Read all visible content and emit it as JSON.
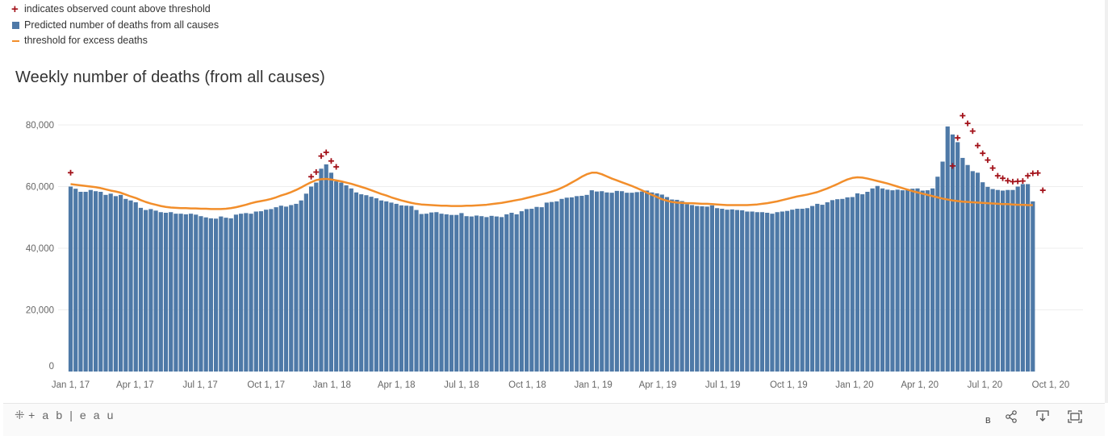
{
  "legend": {
    "items": [
      {
        "symbol": "plus",
        "label": "indicates observed count above threshold",
        "color": "#a3121a"
      },
      {
        "symbol": "bar",
        "label": "Predicted number of deaths from all causes",
        "color": "#4e79a7"
      },
      {
        "symbol": "line",
        "label": "threshold for excess deaths",
        "color": "#f28e2b"
      }
    ]
  },
  "chart_data": {
    "type": "bar",
    "title": "Weekly number of deaths (from all causes)",
    "xlabel": "",
    "ylabel": "",
    "ylim": [
      0,
      85000
    ],
    "y_ticks": [
      0,
      20000,
      40000,
      60000,
      80000
    ],
    "y_tick_labels": [
      "0",
      "20,000",
      "40,000",
      "60,000",
      "80,000"
    ],
    "x_tick_labels": [
      "Jan 1, 17",
      "Apr 1, 17",
      "Jul 1, 17",
      "Oct 1, 17",
      "Jan 1, 18",
      "Apr 1, 18",
      "Jul 1, 18",
      "Oct 1, 18",
      "Jan 1, 19",
      "Apr 1, 19",
      "Jul 1, 19",
      "Oct 1, 19",
      "Jan 1, 20",
      "Apr 1, 20",
      "Jul 1, 20",
      "Oct 1, 20"
    ],
    "x_tick_weeks": [
      0,
      12.86,
      25.86,
      39,
      52.14,
      65,
      78,
      91.14,
      104.29,
      117.14,
      130.14,
      143.29,
      156.43,
      169.43,
      182.43,
      195.57
    ],
    "grid": true,
    "legend_position": "top-left",
    "series": [
      {
        "name": "Predicted number of deaths from all causes",
        "type": "bar",
        "color": "#4e79a7",
        "values": [
          60000,
          59300,
          58300,
          58300,
          58900,
          58500,
          58300,
          57300,
          57700,
          56900,
          57300,
          56000,
          55500,
          54900,
          53100,
          52400,
          52700,
          52200,
          51700,
          51500,
          51700,
          51200,
          51200,
          51000,
          51200,
          50900,
          50400,
          50000,
          49700,
          49600,
          50300,
          49900,
          49700,
          50900,
          51200,
          51400,
          51200,
          51900,
          52000,
          52500,
          52700,
          53300,
          53800,
          53500,
          54000,
          54400,
          55500,
          57700,
          60000,
          61300,
          65800,
          67200,
          64500,
          61700,
          61300,
          60400,
          59400,
          58100,
          57500,
          57200,
          56700,
          56200,
          55500,
          55200,
          54800,
          54400,
          53900,
          53800,
          53700,
          52400,
          51100,
          51200,
          51600,
          51700,
          51200,
          51000,
          50800,
          50800,
          51400,
          50400,
          50300,
          50600,
          50400,
          50100,
          50500,
          50300,
          50100,
          51000,
          51500,
          51000,
          52000,
          52700,
          52800,
          53400,
          53300,
          54800,
          55000,
          55200,
          56000,
          56400,
          56500,
          56900,
          57000,
          57300,
          58800,
          58400,
          58500,
          58100,
          58000,
          58600,
          58500,
          58000,
          58000,
          58200,
          58400,
          58700,
          58100,
          57800,
          57400,
          56600,
          55800,
          55700,
          55300,
          54300,
          54000,
          53700,
          53600,
          53500,
          53900,
          53000,
          52800,
          52500,
          52600,
          52400,
          52300,
          51900,
          51900,
          51700,
          51700,
          51500,
          51200,
          51700,
          51900,
          52100,
          52500,
          52800,
          52800,
          53000,
          53700,
          54400,
          54100,
          54900,
          55600,
          55900,
          56000,
          56500,
          56600,
          57800,
          57500,
          58300,
          59400,
          60200,
          59400,
          59000,
          58800,
          59000,
          58800,
          59200,
          59300,
          59400,
          58700,
          58800,
          59400,
          63200,
          68100,
          79500,
          76900,
          74400,
          69300,
          67000,
          65000,
          64500,
          61400,
          59900,
          59200,
          58900,
          58700,
          58900,
          58900,
          60000,
          60800,
          60800,
          55200
        ]
      },
      {
        "name": "threshold for excess deaths",
        "type": "line",
        "color": "#f28e2b",
        "values": [
          60800,
          60600,
          60400,
          60200,
          60000,
          59800,
          59500,
          59100,
          58700,
          58400,
          58000,
          57400,
          56800,
          56300,
          55600,
          55000,
          54500,
          54100,
          53700,
          53400,
          53200,
          53100,
          53000,
          53000,
          52900,
          52900,
          52800,
          52800,
          52700,
          52700,
          52700,
          52800,
          53000,
          53300,
          53700,
          54100,
          54600,
          55000,
          55300,
          55600,
          56000,
          56500,
          57100,
          57600,
          58200,
          58900,
          59700,
          60600,
          61400,
          62100,
          62400,
          62500,
          62300,
          62000,
          61700,
          61300,
          60900,
          60400,
          59900,
          59400,
          58800,
          58200,
          57600,
          57100,
          56500,
          56000,
          55500,
          55100,
          54700,
          54400,
          54200,
          54100,
          54000,
          53900,
          53800,
          53800,
          53700,
          53700,
          53700,
          53800,
          53800,
          53900,
          54000,
          54100,
          54300,
          54500,
          54700,
          55000,
          55300,
          55600,
          55900,
          56300,
          56700,
          57100,
          57500,
          57900,
          58400,
          58900,
          59600,
          60400,
          61300,
          62200,
          63200,
          64000,
          64500,
          64500,
          64000,
          63300,
          62600,
          62000,
          61400,
          60800,
          60200,
          59500,
          58800,
          58000,
          57300,
          56600,
          55900,
          55400,
          55000,
          54800,
          54700,
          54600,
          54600,
          54500,
          54400,
          54400,
          54300,
          54200,
          54100,
          54000,
          54000,
          54000,
          54000,
          54000,
          54100,
          54200,
          54400,
          54600,
          54900,
          55200,
          55600,
          56000,
          56400,
          56800,
          57100,
          57400,
          57800,
          58200,
          58800,
          59400,
          60100,
          60800,
          61600,
          62300,
          62800,
          63000,
          62900,
          62600,
          62200,
          61800,
          61400,
          61000,
          60500,
          60000,
          59500,
          59000,
          58500,
          58100,
          57700,
          57300,
          56900,
          56500,
          56100,
          55800,
          55500,
          55300,
          55100,
          55000,
          54900,
          54800,
          54700,
          54600,
          54500,
          54400,
          54300,
          54300,
          54200,
          54100,
          54100,
          54000,
          54000
        ]
      }
    ],
    "above_threshold_markers": [
      {
        "week": 0,
        "value": 64500
      },
      {
        "week": 48,
        "value": 63200
      },
      {
        "week": 49,
        "value": 64700
      },
      {
        "week": 50,
        "value": 69900
      },
      {
        "week": 51,
        "value": 71100
      },
      {
        "week": 52,
        "value": 68300
      },
      {
        "week": 53,
        "value": 66400
      },
      {
        "week": 176,
        "value": 66700
      },
      {
        "week": 177,
        "value": 75800
      },
      {
        "week": 178,
        "value": 83000
      },
      {
        "week": 179,
        "value": 80500
      },
      {
        "week": 180,
        "value": 78000
      },
      {
        "week": 181,
        "value": 73300
      },
      {
        "week": 182,
        "value": 70800
      },
      {
        "week": 183,
        "value": 68600
      },
      {
        "week": 184,
        "value": 66000
      },
      {
        "week": 185,
        "value": 63500
      },
      {
        "week": 186,
        "value": 62700
      },
      {
        "week": 187,
        "value": 61900
      },
      {
        "week": 188,
        "value": 61600
      },
      {
        "week": 189,
        "value": 61700
      },
      {
        "week": 190,
        "value": 61800
      },
      {
        "week": 191,
        "value": 63500
      },
      {
        "week": 192,
        "value": 64300
      },
      {
        "week": 193,
        "value": 64400
      },
      {
        "week": 194,
        "value": 58800
      }
    ]
  },
  "footer": {
    "logo_text": "+ a b | e a u",
    "logo_icon": "tableau-mark-icon",
    "b_label": "B",
    "buttons": [
      {
        "name": "share-icon",
        "glyph": "⋖"
      },
      {
        "name": "download-icon",
        "glyph": "⤓"
      },
      {
        "name": "fullscreen-icon",
        "glyph": "⛶"
      }
    ]
  }
}
